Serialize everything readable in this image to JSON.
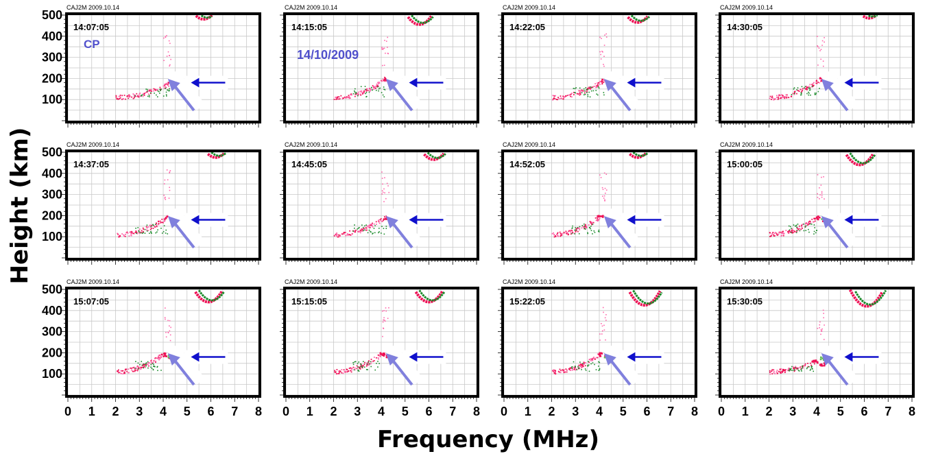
{
  "figure": {
    "ylabel": "Height (km)",
    "xlabel": "Frequency (MHz)"
  },
  "colors": {
    "o_trace": "#ee1155",
    "o_trace_light": "#ff66aa",
    "x_trace": "#1a8a2a",
    "x_trace_light": "#66bb55",
    "arrow_small": "#1010cc",
    "arrow_large": "#8080dd",
    "annotation": "#5050cc"
  },
  "chart_data": [
    {
      "type": "scatter",
      "header": "CAJ2M 2009.10.14",
      "time": "14:07:05",
      "annotation": "CP",
      "xlim": [
        0,
        8
      ],
      "ylim": [
        0,
        500
      ],
      "x_ticks": [],
      "y_ticks": [
        100,
        200,
        300,
        400,
        500
      ],
      "ftop": {
        "x": [
          4.3,
          4.4,
          4.6
        ],
        "y": [
          182,
          200,
          195
        ]
      },
      "fxe": {
        "x": [
          4.5,
          4.8,
          5.1
        ],
        "y": [
          195,
          185,
          183
        ]
      },
      "f2": {
        "min_x": 5.7,
        "min_y": 480
      },
      "arrow_blue_at": {
        "x": 6.2,
        "y": 180
      },
      "arrow_purple_at": {
        "x": 4.6,
        "y": 120
      }
    },
    {
      "type": "scatter",
      "header": "CAJ2M 2009.10.14",
      "time": "14:15:05",
      "annotation": "14/10/2009",
      "xlim": [
        0,
        8
      ],
      "ylim": [
        0,
        500
      ],
      "x_ticks": [],
      "y_ticks": [],
      "ftop": {
        "x": [
          4.2,
          4.5
        ],
        "y": [
          200,
          195
        ]
      },
      "fxe": {
        "x": [
          4.6,
          5.0
        ],
        "y": [
          195,
          185
        ]
      },
      "f2": {
        "min_x": 5.6,
        "min_y": 455
      },
      "arrow_blue_at": {
        "x": 6.2,
        "y": 180
      },
      "arrow_purple_at": {
        "x": 4.6,
        "y": 120
      }
    },
    {
      "type": "scatter",
      "header": "CAJ2M 2009.10.14",
      "time": "14:22:05",
      "annotation": "",
      "xlim": [
        0,
        8
      ],
      "ylim": [
        0,
        500
      ],
      "x_ticks": [],
      "y_ticks": [],
      "ftop": {
        "x": [
          4.2,
          4.5
        ],
        "y": [
          195,
          190
        ]
      },
      "fxe": {
        "x": [
          4.5,
          4.9
        ],
        "y": [
          190,
          182
        ]
      },
      "f2": {
        "min_x": 5.6,
        "min_y": 465
      },
      "arrow_blue_at": {
        "x": 6.2,
        "y": 180
      },
      "arrow_purple_at": {
        "x": 4.6,
        "y": 120
      }
    },
    {
      "type": "scatter",
      "header": "CAJ2M 2009.10.14",
      "time": "14:30:05",
      "annotation": "",
      "xlim": [
        0,
        8
      ],
      "ylim": [
        0,
        500
      ],
      "x_ticks": [],
      "y_ticks": [],
      "ftop": {
        "x": [
          4.2,
          4.5
        ],
        "y": [
          200,
          190
        ]
      },
      "fxe": {
        "x": [
          4.5,
          4.9
        ],
        "y": [
          195,
          185
        ]
      },
      "f2": {
        "min_x": 6.2,
        "min_y": 485
      },
      "arrow_blue_at": {
        "x": 6.2,
        "y": 180
      },
      "arrow_purple_at": {
        "x": 4.6,
        "y": 120
      }
    },
    {
      "type": "scatter",
      "header": "CAJ2M 2009.10.14",
      "time": "14:37:05",
      "annotation": "",
      "xlim": [
        0,
        8
      ],
      "ylim": [
        0,
        500
      ],
      "x_ticks": [],
      "y_ticks": [
        100,
        200,
        300,
        400,
        500
      ],
      "ftop": {
        "x": [
          4.2,
          4.4
        ],
        "y": [
          195,
          190
        ]
      },
      "fxe": {
        "x": [
          4.5,
          4.9
        ],
        "y": [
          200,
          190
        ]
      },
      "f2": {
        "min_x": 6.2,
        "min_y": 475
      },
      "arrow_blue_at": {
        "x": 6.2,
        "y": 180
      },
      "arrow_purple_at": {
        "x": 4.6,
        "y": 120
      }
    },
    {
      "type": "scatter",
      "header": "CAJ2M 2009.10.14",
      "time": "14:45:05",
      "annotation": "",
      "xlim": [
        0,
        8
      ],
      "ylim": [
        0,
        500
      ],
      "x_ticks": [],
      "y_ticks": [],
      "ftop": {
        "x": [
          4.2,
          4.4
        ],
        "y": [
          195,
          190
        ]
      },
      "fxe": {
        "x": [
          4.5,
          4.8
        ],
        "y": [
          195,
          185
        ]
      },
      "f2": {
        "min_x": 6.2,
        "min_y": 465
      },
      "arrow_blue_at": {
        "x": 6.2,
        "y": 180
      },
      "arrow_purple_at": {
        "x": 4.6,
        "y": 120
      }
    },
    {
      "type": "scatter",
      "header": "CAJ2M 2009.10.14",
      "time": "14:52:05",
      "annotation": "",
      "xlim": [
        0,
        8
      ],
      "ylim": [
        0,
        500
      ],
      "x_ticks": [],
      "y_ticks": [],
      "ftop": {
        "x": [
          4.0,
          4.4
        ],
        "y": [
          195,
          185
        ]
      },
      "fxe": {
        "x": [
          4.4,
          4.8
        ],
        "y": [
          190,
          180
        ]
      },
      "f2": {
        "min_x": 5.6,
        "min_y": 475
      },
      "arrow_blue_at": {
        "x": 6.2,
        "y": 180
      },
      "arrow_purple_at": {
        "x": 4.6,
        "y": 120
      }
    },
    {
      "type": "scatter",
      "header": "CAJ2M 2009.10.14",
      "time": "15:00:05",
      "annotation": "",
      "xlim": [
        0,
        8
      ],
      "ylim": [
        0,
        500
      ],
      "x_ticks": [],
      "y_ticks": [],
      "ftop": {
        "x": [
          4.0,
          4.3
        ],
        "y": [
          195,
          185
        ]
      },
      "fxe": {
        "x": [
          4.3,
          4.7
        ],
        "y": [
          195,
          180
        ]
      },
      "f2": {
        "min_x": 5.8,
        "min_y": 440
      },
      "arrow_blue_at": {
        "x": 6.2,
        "y": 180
      },
      "arrow_purple_at": {
        "x": 4.6,
        "y": 120
      }
    },
    {
      "type": "scatter",
      "header": "CAJ2M 2009.10.14",
      "time": "15:07:05",
      "annotation": "",
      "xlim": [
        0,
        8
      ],
      "ylim": [
        0,
        500
      ],
      "x_ticks": [
        0,
        1,
        2,
        3,
        4,
        5,
        6,
        7,
        8
      ],
      "y_ticks": [
        100,
        200,
        300,
        400,
        500
      ],
      "ftop": {
        "x": [
          4.0,
          4.3
        ],
        "y": [
          195,
          185
        ]
      },
      "fxe": {
        "x": [
          4.3,
          4.7
        ],
        "y": [
          190,
          180
        ]
      },
      "f2": {
        "min_x": 5.9,
        "min_y": 440
      },
      "arrow_blue_at": {
        "x": 6.2,
        "y": 180
      },
      "arrow_purple_at": {
        "x": 4.6,
        "y": 120
      }
    },
    {
      "type": "scatter",
      "header": "CAJ2M 2009.10.14",
      "time": "15:15:05",
      "annotation": "",
      "xlim": [
        0,
        8
      ],
      "ylim": [
        0,
        500
      ],
      "x_ticks": [
        0,
        1,
        2,
        3,
        4,
        5,
        6,
        7,
        8
      ],
      "y_ticks": [],
      "ftop": {
        "x": [
          4.0,
          4.3
        ],
        "y": [
          195,
          185
        ]
      },
      "fxe": {
        "x": [
          4.3,
          4.7
        ],
        "y": [
          190,
          180
        ]
      },
      "f2": {
        "min_x": 6.0,
        "min_y": 440
      },
      "arrow_blue_at": {
        "x": 6.2,
        "y": 180
      },
      "arrow_purple_at": {
        "x": 4.6,
        "y": 120
      }
    },
    {
      "type": "scatter",
      "header": "CAJ2M 2009.10.14",
      "time": "15:22:05",
      "annotation": "",
      "xlim": [
        0,
        8
      ],
      "ylim": [
        0,
        500
      ],
      "x_ticks": [
        0,
        1,
        2,
        3,
        4,
        5,
        6,
        7,
        8
      ],
      "y_ticks": [],
      "ftop": {
        "x": [
          4.0,
          4.3
        ],
        "y": [
          195,
          185
        ]
      },
      "fxe": {
        "x": [
          4.3,
          4.7
        ],
        "y": [
          190,
          180
        ]
      },
      "f2": {
        "min_x": 5.9,
        "min_y": 425
      },
      "arrow_blue_at": {
        "x": 6.2,
        "y": 180
      },
      "arrow_purple_at": {
        "x": 4.6,
        "y": 120
      }
    },
    {
      "type": "scatter",
      "header": "CAJ2M 2009.10.14",
      "time": "15:30:05",
      "annotation": "",
      "xlim": [
        0,
        8
      ],
      "ylim": [
        0,
        500
      ],
      "x_ticks": [
        0,
        1,
        2,
        3,
        4,
        5,
        6,
        7,
        8
      ],
      "y_ticks": [],
      "ftop": {
        "x": [
          3.9,
          4.2
        ],
        "y": [
          160,
          150
        ]
      },
      "fxe": {
        "x": [
          4.2,
          4.6
        ],
        "y": [
          175,
          165
        ]
      },
      "f2": {
        "min_x": 6.1,
        "min_y": 420
      },
      "arrow_blue_at": {
        "x": 6.2,
        "y": 180
      },
      "arrow_purple_at": {
        "x": 4.6,
        "y": 120
      }
    }
  ]
}
